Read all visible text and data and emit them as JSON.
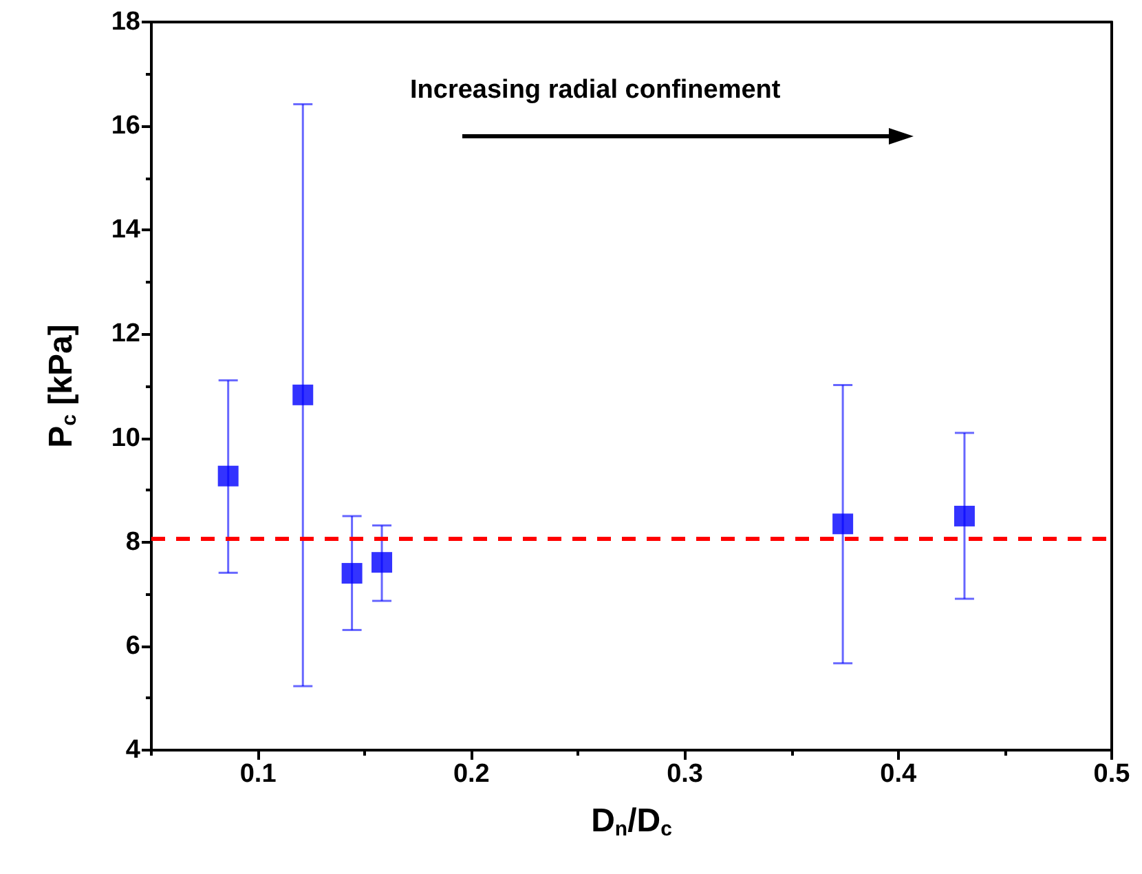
{
  "chart_data": {
    "type": "scatter",
    "xlabel": "D$_{n}$/D$_{c}$",
    "ylabel": "P$_{c}$ [kPa]",
    "annotations": [
      "Increasing radial confinement"
    ],
    "x": [
      0.086,
      0.121,
      0.144,
      0.158,
      0.374,
      0.431
    ],
    "series": [
      {
        "color": "#0000ff",
        "values": [
          9.27,
          10.83,
          7.4,
          7.61,
          8.35,
          8.5
        ],
        "errors": [
          [
            7.41,
            11.11
          ],
          [
            5.23,
            16.42
          ],
          [
            6.31,
            8.5
          ],
          [
            6.87,
            8.32
          ],
          [
            5.67,
            11.02
          ],
          [
            6.91,
            10.1
          ]
        ]
      }
    ],
    "marker": "square",
    "ref_lines": [
      {
        "axis": "y",
        "value": 8.06,
        "color": "#ff0000",
        "line_style": "dashed"
      }
    ],
    "xlim": [
      0.05,
      0.5
    ],
    "xticks": [
      {
        "value": 0.05,
        "label": null
      },
      0.1,
      {
        "value": 0.15,
        "label": null
      },
      0.2,
      {
        "value": 0.25,
        "label": null
      },
      0.3,
      {
        "value": 0.35,
        "label": null
      },
      0.4,
      {
        "value": 0.45,
        "label": null
      },
      0.5
    ],
    "ylim": [
      4,
      18
    ],
    "yticks": [
      4,
      {
        "value": 5,
        "label": null
      },
      6,
      {
        "value": 7,
        "label": null
      },
      8,
      {
        "value": 9,
        "label": null
      },
      10,
      {
        "value": 11,
        "label": null
      },
      12,
      {
        "value": 13,
        "label": null
      },
      14,
      {
        "value": 15,
        "label": null
      },
      16,
      {
        "value": 17,
        "label": null
      },
      18
    ],
    "grid": false
  }
}
